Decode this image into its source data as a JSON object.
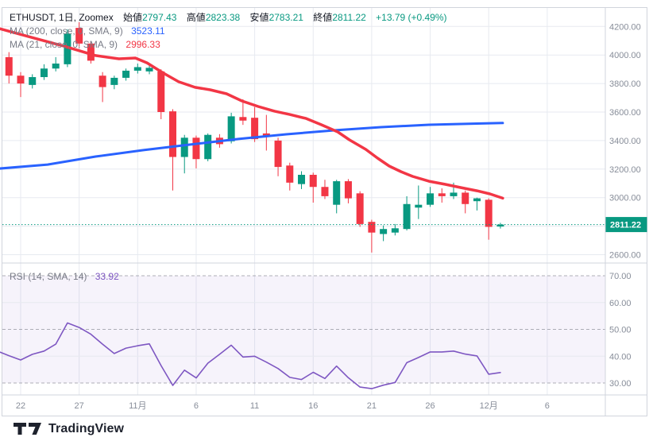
{
  "header": {
    "symbol_line": {
      "symbol": "ETHUSDT, 1日, Zoomex",
      "change": "+13.79 (+0.49%)"
    },
    "ohlc": [
      {
        "label": "始値",
        "value": "2797.43"
      },
      {
        "label": "高値",
        "value": "2823.38"
      },
      {
        "label": "安値",
        "value": "2783.21"
      },
      {
        "label": "終値",
        "value": "2811.22"
      }
    ],
    "ma200": {
      "label": "MA (200, close, 0, SMA, 9)",
      "value": "3523.11"
    },
    "ma21": {
      "label": "MA (21, close, 0, SMA, 9)",
      "value": "2996.33"
    },
    "rsi": {
      "label": "RSI (14, SMA, 14)",
      "value": "33.92"
    }
  },
  "footer": {
    "brand": "TradingView"
  },
  "colors": {
    "up": "#089981",
    "down": "#f23645",
    "ma200": "#2962ff",
    "ma21": "#f23645",
    "rsi": "#7e57c2",
    "band_fill": "#7e57c2",
    "grid": "#e7eaf0",
    "frame": "#d1d4dc",
    "dashed": "#70737e",
    "axis_text": "#878d99",
    "badge_bg": "#089981",
    "badge_text": "#ffffff"
  },
  "chart_data": {
    "type": "candlestick",
    "title": "ETHUSDT, 1日, Zoomex",
    "legend_position": "top-left",
    "grid": true,
    "last_bar": {
      "open": 2797.43,
      "high": 2823.38,
      "low": 2783.21,
      "close": 2811.22,
      "change": 13.79,
      "change_pct": 0.49
    },
    "price_axis": {
      "range": [
        2560,
        4330
      ],
      "ticks": [
        [
          4200,
          "4200.00"
        ],
        [
          4000,
          "4000.00"
        ],
        [
          3800,
          "3800.00"
        ],
        [
          3600,
          "3600.00"
        ],
        [
          3400,
          "3400.00"
        ],
        [
          3200,
          "3200.00"
        ],
        [
          3000,
          "3000.00"
        ],
        [
          2600,
          "2600.00"
        ]
      ],
      "current_price": 2811.22,
      "current_price_label": "2811.22"
    },
    "time_axis": {
      "ticks": [
        [
          0,
          "22"
        ],
        [
          5,
          "27"
        ],
        [
          10,
          "11月"
        ],
        [
          15,
          "6"
        ],
        [
          20,
          "11"
        ],
        [
          25,
          "16"
        ],
        [
          30,
          "21"
        ],
        [
          35,
          "26"
        ],
        [
          40,
          "12月"
        ],
        [
          45,
          "6"
        ]
      ]
    },
    "candles": [
      [
        -1,
        3985,
        4020,
        3800,
        3855
      ],
      [
        0,
        3855,
        3880,
        3705,
        3800
      ],
      [
        1,
        3790,
        3865,
        3765,
        3845
      ],
      [
        2,
        3845,
        3935,
        3825,
        3905
      ],
      [
        3,
        3905,
        3985,
        3885,
        3940
      ],
      [
        4,
        3935,
        4180,
        3915,
        4150
      ],
      [
        5,
        4190,
        4230,
        4060,
        4080
      ],
      [
        6,
        4080,
        4095,
        3940,
        3960
      ],
      [
        7,
        3855,
        3880,
        3670,
        3775
      ],
      [
        8,
        3790,
        3855,
        3760,
        3840
      ],
      [
        9,
        3840,
        3905,
        3820,
        3890
      ],
      [
        10,
        3890,
        3940,
        3870,
        3915
      ],
      [
        11,
        3885,
        3930,
        3865,
        3910
      ],
      [
        12,
        3885,
        3900,
        3550,
        3600
      ],
      [
        13,
        3605,
        3620,
        3050,
        3285
      ],
      [
        14,
        3285,
        3440,
        3170,
        3420
      ],
      [
        15,
        3420,
        3435,
        3205,
        3270
      ],
      [
        16,
        3270,
        3450,
        3255,
        3440
      ],
      [
        17,
        3420,
        3445,
        3350,
        3375
      ],
      [
        18,
        3395,
        3595,
        3380,
        3570
      ],
      [
        19,
        3565,
        3690,
        3510,
        3540
      ],
      [
        20,
        3560,
        3635,
        3390,
        3410
      ],
      [
        21,
        3450,
        3580,
        3330,
        3425
      ],
      [
        22,
        3400,
        3420,
        3150,
        3215
      ],
      [
        23,
        3225,
        3245,
        3050,
        3105
      ],
      [
        24,
        3095,
        3185,
        3060,
        3160
      ],
      [
        25,
        3160,
        3175,
        2965,
        3075
      ],
      [
        26,
        3075,
        3125,
        2990,
        3010
      ],
      [
        27,
        2950,
        3125,
        2890,
        3115
      ],
      [
        28,
        3115,
        3130,
        2960,
        2995
      ],
      [
        29,
        3030,
        3045,
        2795,
        2815
      ],
      [
        30,
        2830,
        2845,
        2615,
        2755
      ],
      [
        31,
        2745,
        2805,
        2695,
        2780
      ],
      [
        32,
        2755,
        2815,
        2735,
        2785
      ],
      [
        33,
        2780,
        3010,
        2770,
        2955
      ],
      [
        34,
        2930,
        3085,
        2850,
        2950
      ],
      [
        35,
        2950,
        3075,
        2935,
        3030
      ],
      [
        36,
        3030,
        3065,
        2965,
        3010
      ],
      [
        37,
        3010,
        3105,
        2990,
        3035
      ],
      [
        38,
        3035,
        3050,
        2890,
        2955
      ],
      [
        39,
        2975,
        3000,
        2910,
        2995
      ],
      [
        40,
        2985,
        2995,
        2705,
        2795
      ],
      [
        41,
        2797.43,
        2823.38,
        2783.21,
        2811.22
      ]
    ],
    "ma200": {
      "name": "MA (200, close, 0, SMA, 9)",
      "value": 3523.11,
      "points": [
        [
          -1.8,
          3204
        ],
        [
          2.3,
          3232
        ],
        [
          6.4,
          3288
        ],
        [
          10.5,
          3333
        ],
        [
          14.5,
          3372
        ],
        [
          18.6,
          3411
        ],
        [
          22.7,
          3444
        ],
        [
          26.8,
          3472
        ],
        [
          30.8,
          3494
        ],
        [
          34.9,
          3511
        ],
        [
          39.0,
          3519
        ],
        [
          41.2,
          3523
        ]
      ]
    },
    "ma21": {
      "name": "MA (21, close, 0, SMA, 9)",
      "value": 2996.33,
      "points": [
        [
          -1.8,
          4185
        ],
        [
          0.9,
          4124
        ],
        [
          3.7,
          4062
        ],
        [
          6.4,
          3996
        ],
        [
          8.4,
          3973
        ],
        [
          9.8,
          3979
        ],
        [
          10.8,
          3945
        ],
        [
          12.2,
          3873
        ],
        [
          13.5,
          3812
        ],
        [
          14.9,
          3773
        ],
        [
          16.2,
          3756
        ],
        [
          17.6,
          3728
        ],
        [
          18.9,
          3678
        ],
        [
          20.3,
          3639
        ],
        [
          21.7,
          3606
        ],
        [
          23.0,
          3583
        ],
        [
          24.4,
          3555
        ],
        [
          25.7,
          3511
        ],
        [
          27.1,
          3461
        ],
        [
          28.1,
          3405
        ],
        [
          29.5,
          3338
        ],
        [
          30.5,
          3277
        ],
        [
          31.5,
          3221
        ],
        [
          32.5,
          3182
        ],
        [
          33.5,
          3149
        ],
        [
          34.9,
          3115
        ],
        [
          36.3,
          3093
        ],
        [
          37.6,
          3071
        ],
        [
          39.0,
          3048
        ],
        [
          40.1,
          3026
        ],
        [
          41.2,
          2996
        ]
      ]
    },
    "rsi": {
      "name": "RSI (14, SMA, 14)",
      "value": 33.92,
      "range": [
        24,
        74
      ],
      "axis_ticks": [
        [
          70,
          "70.00"
        ],
        [
          60,
          "60.00"
        ],
        [
          50,
          "50.00"
        ],
        [
          40,
          "40.00"
        ],
        [
          30,
          "30.00"
        ]
      ],
      "dashed_levels": [
        70,
        50,
        30
      ],
      "solid_gridlines": [
        60,
        40
      ],
      "band": [
        30,
        70
      ],
      "points": [
        [
          -1.8,
          41.6
        ],
        [
          -1,
          40.2
        ],
        [
          0,
          38.6
        ],
        [
          1,
          40.7
        ],
        [
          2,
          41.9
        ],
        [
          3,
          44.5
        ],
        [
          4,
          52.4
        ],
        [
          5,
          50.7
        ],
        [
          6,
          48.2
        ],
        [
          7,
          44.5
        ],
        [
          8,
          41.0
        ],
        [
          9,
          43.0
        ],
        [
          10,
          43.9
        ],
        [
          11,
          44.6
        ],
        [
          12,
          36.5
        ],
        [
          13,
          29.1
        ],
        [
          14,
          34.8
        ],
        [
          15,
          31.9
        ],
        [
          16,
          37.4
        ],
        [
          17,
          40.7
        ],
        [
          18,
          44.1
        ],
        [
          19,
          39.7
        ],
        [
          20,
          40.0
        ],
        [
          21,
          37.8
        ],
        [
          22,
          35.4
        ],
        [
          23,
          32.1
        ],
        [
          24,
          31.3
        ],
        [
          25,
          34.0
        ],
        [
          26,
          31.7
        ],
        [
          27,
          36.3
        ],
        [
          28,
          32.0
        ],
        [
          29,
          28.5
        ],
        [
          30,
          27.9
        ],
        [
          31,
          29.2
        ],
        [
          32,
          30.2
        ],
        [
          33,
          37.6
        ],
        [
          34,
          39.5
        ],
        [
          35,
          41.6
        ],
        [
          36,
          41.6
        ],
        [
          37,
          41.9
        ],
        [
          38,
          40.8
        ],
        [
          39,
          40.1
        ],
        [
          40,
          33.3
        ],
        [
          41,
          33.92
        ]
      ]
    }
  }
}
